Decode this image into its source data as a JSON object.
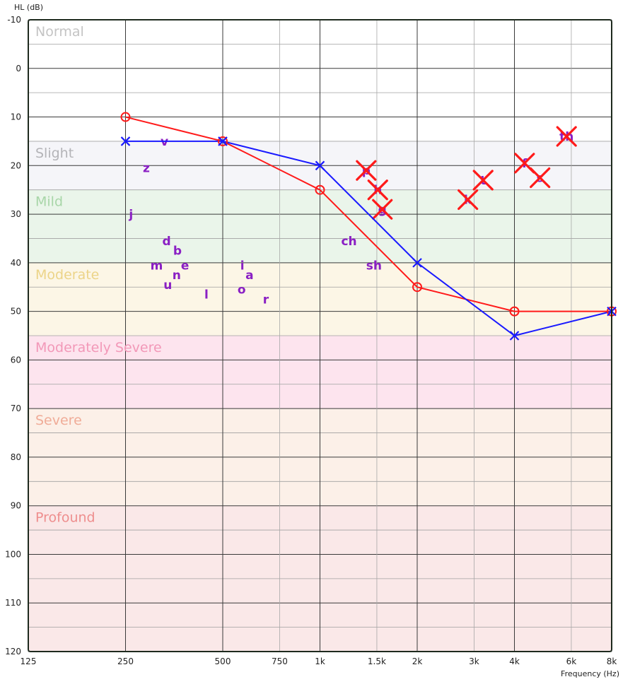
{
  "chart_data": {
    "type": "line",
    "title": "",
    "ylabel": "HL (dB)",
    "xlabel": "Frequency (Hz)",
    "y_axis": {
      "range": [
        -10,
        120
      ],
      "inverted": true,
      "ticks": [
        -10,
        0,
        10,
        20,
        30,
        40,
        50,
        60,
        70,
        80,
        90,
        100,
        110,
        120
      ]
    },
    "x_axis": {
      "scale": "log2",
      "range": [
        125,
        8000
      ],
      "major_ticks": [
        {
          "value": 125,
          "label": "125"
        },
        {
          "value": 250,
          "label": "250"
        },
        {
          "value": 500,
          "label": "500"
        },
        {
          "value": 1000,
          "label": "1k"
        },
        {
          "value": 2000,
          "label": "2k"
        },
        {
          "value": 4000,
          "label": "4k"
        },
        {
          "value": 8000,
          "label": "8k"
        }
      ],
      "minor_ticks": [
        {
          "value": 750,
          "label": "750"
        },
        {
          "value": 1500,
          "label": "1.5k"
        },
        {
          "value": 3000,
          "label": "3k"
        },
        {
          "value": 6000,
          "label": "6k"
        }
      ]
    },
    "grid": true,
    "bands": [
      {
        "label": "Normal",
        "from": -10,
        "to": 15,
        "fill": "#ffffff",
        "label_color": "#c4c4c4"
      },
      {
        "label": "Slight",
        "from": 15,
        "to": 25,
        "fill": "#f5f5f9",
        "label_color": "#b4b4b8"
      },
      {
        "label": "Mild",
        "from": 25,
        "to": 40,
        "fill": "#eaf5ea",
        "label_color": "#a8d6a8"
      },
      {
        "label": "Moderate",
        "from": 40,
        "to": 55,
        "fill": "#fcf6e6",
        "label_color": "#ecd488"
      },
      {
        "label": "Moderately Severe",
        "from": 55,
        "to": 70,
        "fill": "#fde4ee",
        "label_color": "#f298b8"
      },
      {
        "label": "Severe",
        "from": 70,
        "to": 90,
        "fill": "#fcf0e8",
        "label_color": "#f0ac98"
      },
      {
        "label": "Profound",
        "from": 90,
        "to": 120,
        "fill": "#fae8e8",
        "label_color": "#ee8e8e"
      }
    ],
    "series": [
      {
        "marker": "circle",
        "color": "#ff1a1a",
        "points": [
          {
            "x": 250,
            "y": 10
          },
          {
            "x": 500,
            "y": 15
          },
          {
            "x": 1000,
            "y": 25
          },
          {
            "x": 2000,
            "y": 45
          },
          {
            "x": 4000,
            "y": 50
          },
          {
            "x": 8000,
            "y": 50
          }
        ]
      },
      {
        "marker": "x",
        "color": "#1a1aff",
        "points": [
          {
            "x": 250,
            "y": 15
          },
          {
            "x": 500,
            "y": 15
          },
          {
            "x": 1000,
            "y": 20
          },
          {
            "x": 2000,
            "y": 40
          },
          {
            "x": 4000,
            "y": 55
          },
          {
            "x": 8000,
            "y": 50
          }
        ]
      }
    ],
    "speech_sounds": [
      {
        "label": "v",
        "x": 330,
        "y": 15,
        "crossed": false
      },
      {
        "label": "z",
        "x": 290,
        "y": 20.5,
        "crossed": false
      },
      {
        "label": "j",
        "x": 260,
        "y": 30,
        "crossed": false
      },
      {
        "label": "d",
        "x": 335,
        "y": 35.5,
        "crossed": false
      },
      {
        "label": "b",
        "x": 362,
        "y": 37.5,
        "crossed": false
      },
      {
        "label": "m",
        "x": 312,
        "y": 40.5,
        "crossed": false
      },
      {
        "label": "e",
        "x": 382,
        "y": 40.5,
        "crossed": false
      },
      {
        "label": "n",
        "x": 360,
        "y": 42.5,
        "crossed": false
      },
      {
        "label": "u",
        "x": 338,
        "y": 44.5,
        "crossed": false
      },
      {
        "label": "l",
        "x": 445,
        "y": 46.5,
        "crossed": false
      },
      {
        "label": "i",
        "x": 575,
        "y": 40.5,
        "crossed": false
      },
      {
        "label": "a",
        "x": 605,
        "y": 42.5,
        "crossed": false
      },
      {
        "label": "o",
        "x": 572,
        "y": 45.5,
        "crossed": false
      },
      {
        "label": "r",
        "x": 680,
        "y": 47.5,
        "crossed": false
      },
      {
        "label": "ch",
        "x": 1230,
        "y": 35.5,
        "crossed": false
      },
      {
        "label": "sh",
        "x": 1470,
        "y": 40.5,
        "crossed": false
      },
      {
        "label": "p",
        "x": 1390,
        "y": 21,
        "crossed": true
      },
      {
        "label": "h",
        "x": 1510,
        "y": 25,
        "crossed": true
      },
      {
        "label": "g",
        "x": 1560,
        "y": 29,
        "crossed": true
      },
      {
        "label": "k",
        "x": 2870,
        "y": 27,
        "crossed": true
      },
      {
        "label": "t",
        "x": 3200,
        "y": 23,
        "crossed": true
      },
      {
        "label": "f",
        "x": 4300,
        "y": 19.5,
        "crossed": true
      },
      {
        "label": "s",
        "x": 4800,
        "y": 22.5,
        "crossed": true
      },
      {
        "label": "th",
        "x": 5800,
        "y": 14,
        "crossed": true
      }
    ]
  }
}
